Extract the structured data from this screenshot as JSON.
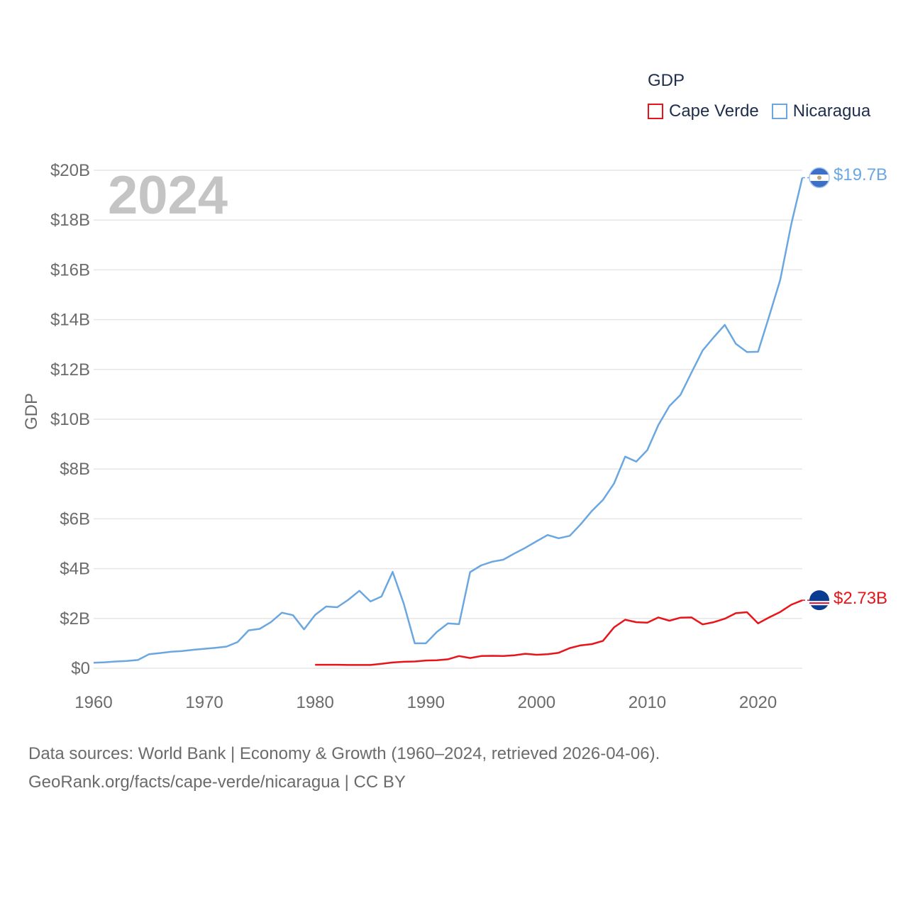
{
  "legend": {
    "title": "GDP",
    "items": [
      {
        "label": "Cape Verde",
        "color": "#e8141a"
      },
      {
        "label": "Nicaragua",
        "color": "#6aa7e1"
      }
    ]
  },
  "year_label": "2024",
  "end_labels": {
    "nicaragua": "$19.7B",
    "cape_verde": "$2.73B"
  },
  "footer": {
    "line1": "Data sources: World Bank | Economy & Growth (1960–2024, retrieved 2026-04-06).",
    "line2": "GeoRank.org/facts/cape-verde/nicaragua | CC BY"
  },
  "chart_data": {
    "type": "line",
    "ylabel": "GDP",
    "xlabel": "",
    "xlim": [
      1960,
      2024
    ],
    "ylim": [
      0,
      20
    ],
    "x_ticks": [
      1960,
      1970,
      1980,
      1990,
      2000,
      2010,
      2020
    ],
    "y_ticks": [
      0,
      2,
      4,
      6,
      8,
      10,
      12,
      14,
      16,
      18,
      20
    ],
    "y_tick_labels": [
      "$0",
      "$2B",
      "$4B",
      "$6B",
      "$8B",
      "$10B",
      "$12B",
      "$14B",
      "$16B",
      "$18B",
      "$20B"
    ],
    "grid": true,
    "series": [
      {
        "name": "Nicaragua",
        "color": "#6aa7e1",
        "x": [
          1960,
          1961,
          1962,
          1963,
          1964,
          1965,
          1966,
          1967,
          1968,
          1969,
          1970,
          1971,
          1972,
          1973,
          1974,
          1975,
          1976,
          1977,
          1978,
          1979,
          1980,
          1981,
          1982,
          1983,
          1984,
          1985,
          1986,
          1987,
          1988,
          1989,
          1990,
          1991,
          1992,
          1993,
          1994,
          1995,
          1996,
          1997,
          1998,
          1999,
          2000,
          2001,
          2002,
          2003,
          2004,
          2005,
          2006,
          2007,
          2008,
          2009,
          2010,
          2011,
          2012,
          2013,
          2014,
          2015,
          2016,
          2017,
          2018,
          2019,
          2020,
          2021,
          2022,
          2023,
          2024
        ],
        "values": [
          0.22,
          0.24,
          0.27,
          0.29,
          0.33,
          0.56,
          0.61,
          0.66,
          0.69,
          0.74,
          0.78,
          0.82,
          0.87,
          1.05,
          1.52,
          1.58,
          1.85,
          2.23,
          2.13,
          1.56,
          2.14,
          2.48,
          2.45,
          2.75,
          3.11,
          2.68,
          2.88,
          3.87,
          2.6,
          1.0,
          1.0,
          1.46,
          1.8,
          1.77,
          3.86,
          4.13,
          4.28,
          4.36,
          4.61,
          4.84,
          5.1,
          5.35,
          5.22,
          5.32,
          5.79,
          6.32,
          6.76,
          7.42,
          8.5,
          8.3,
          8.76,
          9.77,
          10.53,
          10.98,
          11.88,
          12.76,
          13.29,
          13.79,
          13.03,
          12.7,
          12.71,
          14.13,
          15.59,
          17.83,
          19.7
        ]
      },
      {
        "name": "Cape Verde",
        "color": "#e8141a",
        "x": [
          1980,
          1981,
          1982,
          1983,
          1984,
          1985,
          1986,
          1987,
          1988,
          1989,
          1990,
          1991,
          1992,
          1993,
          1994,
          1995,
          1996,
          1997,
          1998,
          1999,
          2000,
          2001,
          2002,
          2003,
          2004,
          2005,
          2006,
          2007,
          2008,
          2009,
          2010,
          2011,
          2012,
          2013,
          2014,
          2015,
          2016,
          2017,
          2018,
          2019,
          2020,
          2021,
          2022,
          2023,
          2024
        ],
        "values": [
          0.14,
          0.14,
          0.14,
          0.13,
          0.13,
          0.13,
          0.18,
          0.23,
          0.26,
          0.27,
          0.31,
          0.32,
          0.36,
          0.49,
          0.41,
          0.49,
          0.5,
          0.49,
          0.52,
          0.58,
          0.54,
          0.56,
          0.62,
          0.81,
          0.92,
          0.97,
          1.1,
          1.64,
          1.95,
          1.85,
          1.83,
          2.04,
          1.91,
          2.03,
          2.04,
          1.76,
          1.85,
          1.99,
          2.21,
          2.25,
          1.8,
          2.04,
          2.26,
          2.55,
          2.73
        ]
      }
    ]
  }
}
